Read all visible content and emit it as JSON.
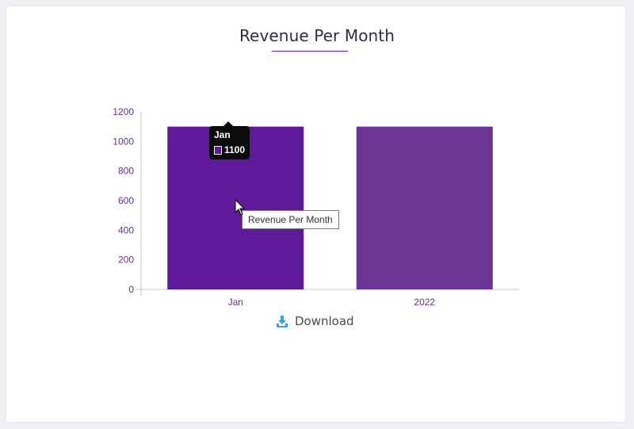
{
  "chart_data": {
    "type": "bar",
    "title": "Revenue Per Month",
    "categories": [
      "Jan",
      "2022"
    ],
    "values": [
      1100,
      1100
    ],
    "ylim": [
      0,
      1200
    ],
    "yticks": [
      0,
      200,
      400,
      600,
      800,
      1000,
      1200
    ],
    "xlabel": "",
    "ylabel": "",
    "bar_colors": [
      "#5e1a98",
      "#6b3593"
    ],
    "series_name": "Revenue Per Month"
  },
  "tooltip": {
    "category": "Jan",
    "value": "1100"
  },
  "hover_label": "Revenue Per Month",
  "download_label": "Download",
  "colors": {
    "accent": "#5e1a98",
    "download_icon": "#3aa3d6"
  }
}
